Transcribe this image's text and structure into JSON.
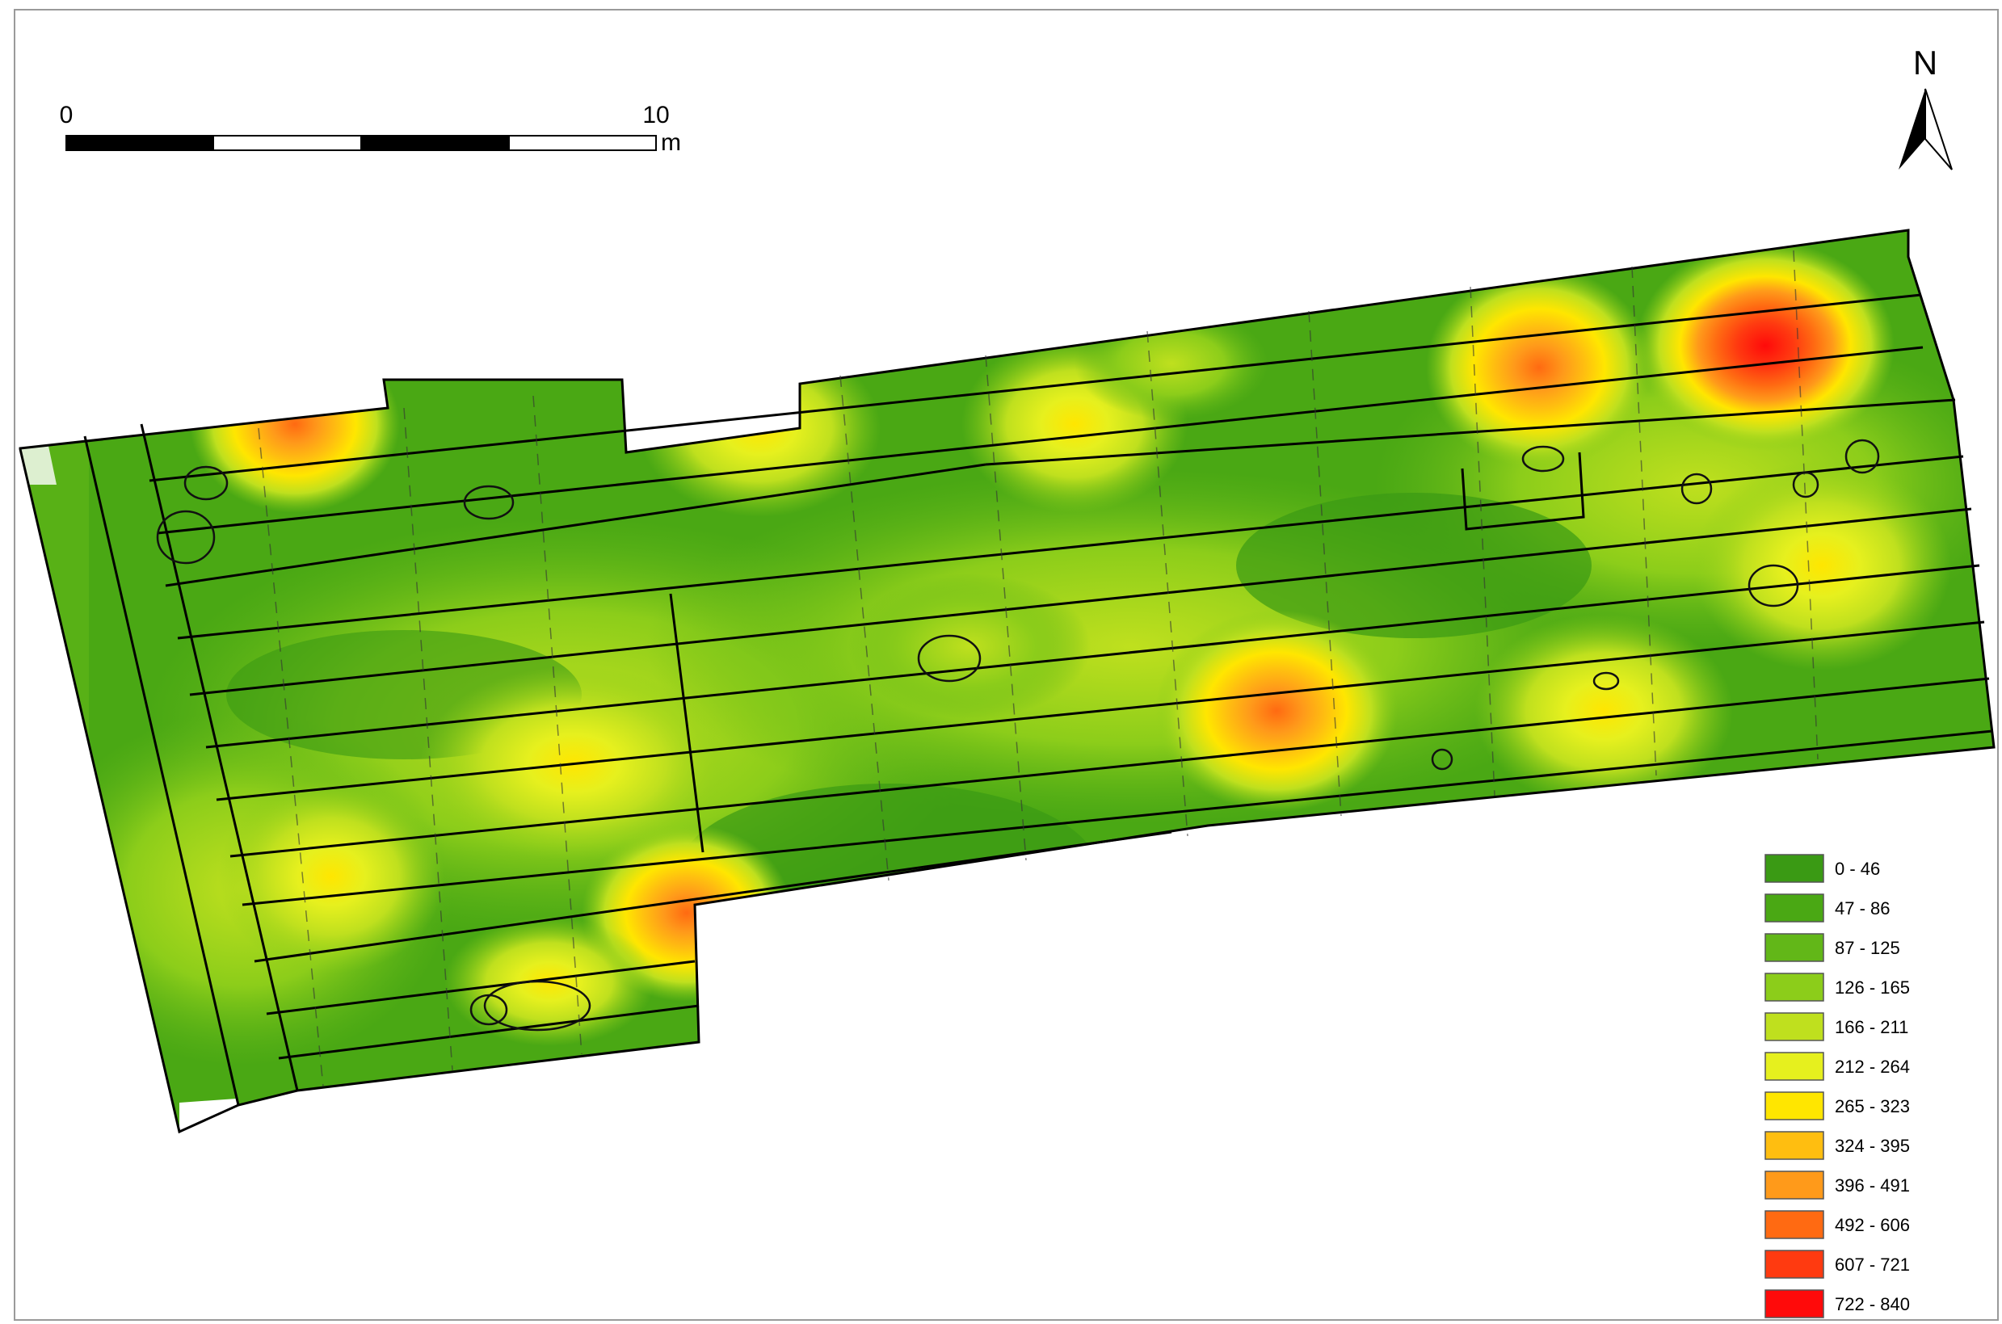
{
  "scale_bar": {
    "start_label": "0",
    "end_label": "10",
    "unit_label": "m"
  },
  "north_arrow": {
    "label": "N"
  },
  "legend": {
    "items": [
      {
        "label": "0 - 46",
        "color": "#3a9a14"
      },
      {
        "label": "47 - 86",
        "color": "#4aa814"
      },
      {
        "label": "87 - 125",
        "color": "#62b718"
      },
      {
        "label": "126 - 165",
        "color": "#8ccd1a"
      },
      {
        "label": "166 - 211",
        "color": "#bfe01e"
      },
      {
        "label": "212 - 264",
        "color": "#e6f01e"
      },
      {
        "label": "265 - 323",
        "color": "#ffe600"
      },
      {
        "label": "324 - 395",
        "color": "#ffbe10"
      },
      {
        "label": "396 - 491",
        "color": "#ff9a1a"
      },
      {
        "label": "492 - 606",
        "color": "#ff6a12"
      },
      {
        "label": "607 - 721",
        "color": "#ff3a10"
      },
      {
        "label": "722 - 840",
        "color": "#ff0a0a"
      }
    ]
  }
}
